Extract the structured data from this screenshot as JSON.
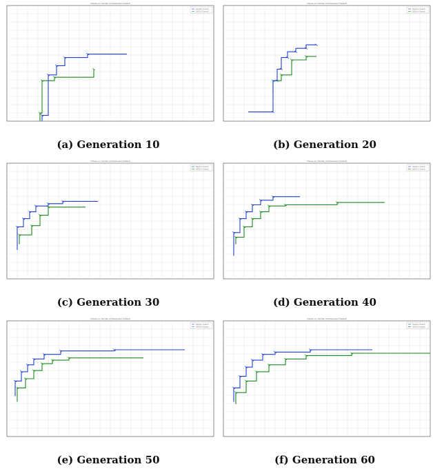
{
  "panels": [
    {
      "caption": "(a) Generation 10",
      "title": "Fitness vs. Number of Parameters Tradeoff",
      "legend": [
        "Random Search",
        "NSGA-II Search"
      ],
      "blue": [
        [
          0.17,
          0.0
        ],
        [
          0.17,
          0.05
        ],
        [
          0.2,
          0.05
        ],
        [
          0.2,
          0.4
        ],
        [
          0.24,
          0.4
        ],
        [
          0.24,
          0.48
        ],
        [
          0.28,
          0.48
        ],
        [
          0.28,
          0.55
        ],
        [
          0.39,
          0.55
        ],
        [
          0.39,
          0.58
        ],
        [
          0.58,
          0.58
        ]
      ],
      "green": [
        [
          0.16,
          0.0
        ],
        [
          0.16,
          0.07
        ],
        [
          0.17,
          0.07
        ],
        [
          0.17,
          0.35
        ],
        [
          0.23,
          0.35
        ],
        [
          0.23,
          0.38
        ],
        [
          0.42,
          0.38
        ],
        [
          0.42,
          0.45
        ]
      ]
    },
    {
      "caption": "(b) Generation 20",
      "title": "Fitness vs. Number of Parameters Tradeoff",
      "legend": [
        "Random Search",
        "NSGA-II Search"
      ],
      "blue": [
        [
          0.12,
          0.08
        ],
        [
          0.24,
          0.08
        ],
        [
          0.24,
          0.35
        ],
        [
          0.26,
          0.35
        ],
        [
          0.26,
          0.45
        ],
        [
          0.28,
          0.45
        ],
        [
          0.28,
          0.55
        ],
        [
          0.31,
          0.55
        ],
        [
          0.31,
          0.6
        ],
        [
          0.35,
          0.6
        ],
        [
          0.35,
          0.63
        ],
        [
          0.4,
          0.63
        ],
        [
          0.4,
          0.66
        ],
        [
          0.45,
          0.66
        ]
      ],
      "green": [
        [
          0.24,
          0.25
        ],
        [
          0.24,
          0.35
        ],
        [
          0.28,
          0.35
        ],
        [
          0.28,
          0.4
        ],
        [
          0.33,
          0.4
        ],
        [
          0.33,
          0.53
        ],
        [
          0.4,
          0.53
        ],
        [
          0.4,
          0.56
        ],
        [
          0.45,
          0.56
        ]
      ]
    },
    {
      "caption": "(c) Generation 30",
      "title": "Fitness vs. Number of Parameters Tradeoff",
      "legend": [
        "Random Search",
        "NSGA-II Search"
      ],
      "blue": [
        [
          0.05,
          0.25
        ],
        [
          0.05,
          0.45
        ],
        [
          0.08,
          0.45
        ],
        [
          0.08,
          0.52
        ],
        [
          0.11,
          0.52
        ],
        [
          0.11,
          0.58
        ],
        [
          0.14,
          0.58
        ],
        [
          0.14,
          0.63
        ],
        [
          0.2,
          0.63
        ],
        [
          0.2,
          0.65
        ],
        [
          0.27,
          0.65
        ],
        [
          0.27,
          0.67
        ],
        [
          0.44,
          0.67
        ]
      ],
      "green": [
        [
          0.06,
          0.3
        ],
        [
          0.06,
          0.38
        ],
        [
          0.12,
          0.38
        ],
        [
          0.12,
          0.46
        ],
        [
          0.16,
          0.46
        ],
        [
          0.16,
          0.55
        ],
        [
          0.2,
          0.55
        ],
        [
          0.2,
          0.62
        ],
        [
          0.38,
          0.62
        ]
      ]
    },
    {
      "caption": "(d) Generation 40",
      "title": "Fitness vs. Number of Parameters Tradeoff",
      "legend": [
        "Random Search",
        "NSGA-II Search"
      ],
      "blue": [
        [
          0.05,
          0.2
        ],
        [
          0.05,
          0.4
        ],
        [
          0.08,
          0.4
        ],
        [
          0.08,
          0.52
        ],
        [
          0.11,
          0.52
        ],
        [
          0.11,
          0.58
        ],
        [
          0.14,
          0.58
        ],
        [
          0.14,
          0.64
        ],
        [
          0.18,
          0.64
        ],
        [
          0.18,
          0.68
        ],
        [
          0.24,
          0.68
        ],
        [
          0.24,
          0.71
        ],
        [
          0.37,
          0.71
        ]
      ],
      "green": [
        [
          0.06,
          0.3
        ],
        [
          0.06,
          0.36
        ],
        [
          0.1,
          0.36
        ],
        [
          0.1,
          0.45
        ],
        [
          0.14,
          0.45
        ],
        [
          0.14,
          0.52
        ],
        [
          0.18,
          0.52
        ],
        [
          0.18,
          0.58
        ],
        [
          0.22,
          0.58
        ],
        [
          0.22,
          0.63
        ],
        [
          0.3,
          0.63
        ],
        [
          0.3,
          0.64
        ],
        [
          0.55,
          0.64
        ],
        [
          0.55,
          0.66
        ],
        [
          0.78,
          0.66
        ]
      ]
    },
    {
      "caption": "(e) Generation 50",
      "title": "Fitness vs. Number of Parameters Tradeoff",
      "legend": [
        "Random Search",
        "NSGA-II Search"
      ],
      "blue": [
        [
          0.04,
          0.35
        ],
        [
          0.04,
          0.48
        ],
        [
          0.07,
          0.48
        ],
        [
          0.07,
          0.56
        ],
        [
          0.1,
          0.56
        ],
        [
          0.1,
          0.62
        ],
        [
          0.13,
          0.62
        ],
        [
          0.13,
          0.67
        ],
        [
          0.18,
          0.67
        ],
        [
          0.18,
          0.71
        ],
        [
          0.26,
          0.71
        ],
        [
          0.26,
          0.74
        ],
        [
          0.52,
          0.74
        ],
        [
          0.52,
          0.75
        ],
        [
          0.86,
          0.75
        ]
      ],
      "green": [
        [
          0.05,
          0.3
        ],
        [
          0.05,
          0.42
        ],
        [
          0.09,
          0.42
        ],
        [
          0.09,
          0.5
        ],
        [
          0.13,
          0.5
        ],
        [
          0.13,
          0.57
        ],
        [
          0.17,
          0.57
        ],
        [
          0.17,
          0.63
        ],
        [
          0.22,
          0.63
        ],
        [
          0.22,
          0.66
        ],
        [
          0.3,
          0.66
        ],
        [
          0.3,
          0.68
        ],
        [
          0.66,
          0.68
        ]
      ]
    },
    {
      "caption": "(f) Generation 60",
      "title": "Fitness vs. Number of Parameters Tradeoff",
      "legend": [
        "Random Search",
        "NSGA-II Search"
      ],
      "blue": [
        [
          0.05,
          0.3
        ],
        [
          0.05,
          0.42
        ],
        [
          0.08,
          0.42
        ],
        [
          0.08,
          0.52
        ],
        [
          0.11,
          0.52
        ],
        [
          0.11,
          0.6
        ],
        [
          0.14,
          0.6
        ],
        [
          0.14,
          0.66
        ],
        [
          0.19,
          0.66
        ],
        [
          0.19,
          0.71
        ],
        [
          0.25,
          0.71
        ],
        [
          0.25,
          0.73
        ],
        [
          0.42,
          0.73
        ],
        [
          0.42,
          0.75
        ],
        [
          0.72,
          0.75
        ]
      ],
      "green": [
        [
          0.06,
          0.28
        ],
        [
          0.06,
          0.38
        ],
        [
          0.11,
          0.38
        ],
        [
          0.11,
          0.48
        ],
        [
          0.16,
          0.48
        ],
        [
          0.16,
          0.56
        ],
        [
          0.22,
          0.56
        ],
        [
          0.22,
          0.62
        ],
        [
          0.3,
          0.62
        ],
        [
          0.3,
          0.67
        ],
        [
          0.4,
          0.67
        ],
        [
          0.4,
          0.7
        ],
        [
          0.62,
          0.7
        ],
        [
          0.62,
          0.72
        ],
        [
          1.0,
          0.72
        ]
      ]
    }
  ]
}
